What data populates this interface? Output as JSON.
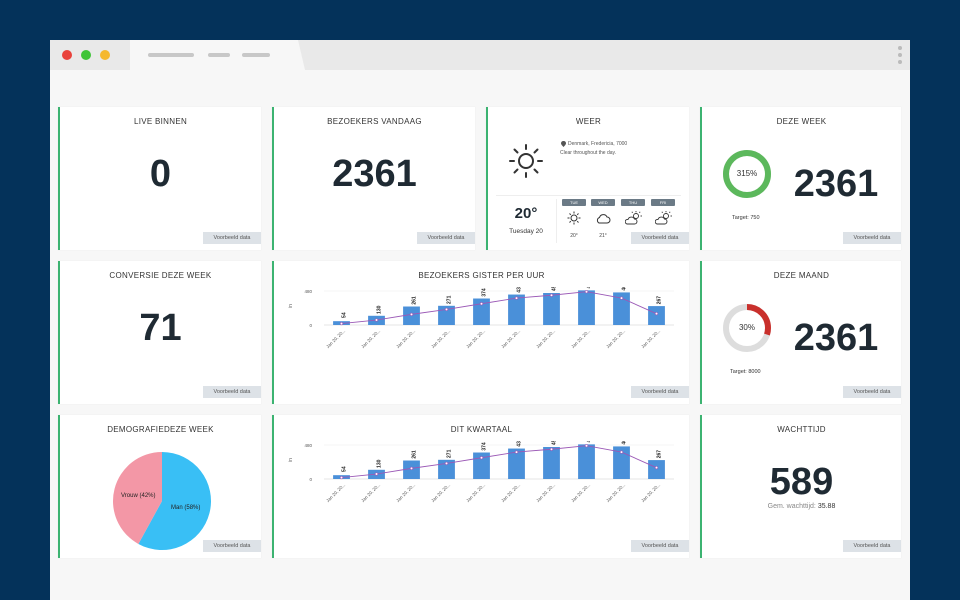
{
  "titlebar": {
    "traffic_lights": [
      "#e9423b",
      "#3fc437",
      "#f5b82e"
    ]
  },
  "cards": {
    "live": {
      "title": "LIVE BINNEN",
      "value": "0"
    },
    "visitors_today": {
      "title": "BEZOEKERS VANDAAG",
      "value": "2361"
    },
    "weather": {
      "title": "WEER",
      "location": "Denmark, Fredericia, 7000",
      "description": "Clear throughout the day.",
      "temp": "20°",
      "day": "Tuesday 20",
      "forecast": [
        {
          "day": "TUE",
          "temp": "20°",
          "icon": "sun-icon"
        },
        {
          "day": "WED",
          "temp": "21°",
          "icon": "cloud-icon"
        },
        {
          "day": "THU",
          "temp": "",
          "icon": "partly-cloudy-icon"
        },
        {
          "day": "FRI",
          "temp": "",
          "icon": "partly-cloudy-icon"
        }
      ]
    },
    "this_week": {
      "title": "DEZE WEEK",
      "value": "2361",
      "percent_label": "315%",
      "target": "Target: 750",
      "progress": 1.0,
      "color": "#5cb85c"
    },
    "conversion": {
      "title": "CONVERSIE DEZE WEEK",
      "value": "71"
    },
    "hourly": {
      "title": "BEZOEKERS GISTER PER UUR"
    },
    "this_month": {
      "title": "DEZE MAAND",
      "value": "2361",
      "percent_label": "30%",
      "target": "Target: 8000",
      "progress": 0.3,
      "color": "#c9302c"
    },
    "demographics": {
      "title": "DEMOGRAFIEDEZE WEEK"
    },
    "quarter": {
      "title": "DIT KWARTAAL"
    },
    "wait": {
      "title": "WACHTTIJD",
      "value": "589",
      "sub_label": "Gem. wachttijd:",
      "sub_value": "35.88"
    }
  },
  "badge_label": "Voorbeeld data",
  "chart_data": [
    {
      "type": "bar",
      "title": "BEZOEKERS GISTER PER UUR",
      "ylabel": "in",
      "categories": [
        "Jan 20, 20...",
        "Jan 20, 20...",
        "Jan 20, 20...",
        "Jan 20, 20...",
        "Jan 20, 20...",
        "Jan 20, 20...",
        "Jan 20, 20...",
        "Jan 20, 20...",
        "Jan 20, 20...",
        "Jan 20, 20..."
      ],
      "values": [
        54,
        130,
        261,
        271,
        374,
        430,
        452,
        489,
        460,
        267
      ],
      "line_values": [
        20,
        70,
        150,
        220,
        300,
        380,
        420,
        470,
        380,
        160
      ],
      "ylim": [
        0,
        480
      ],
      "yticks": [
        0,
        480
      ],
      "colors": {
        "bar": "#4a90d9",
        "line": "#9b59b6"
      }
    },
    {
      "type": "bar",
      "title": "DIT KWARTAAL",
      "ylabel": "in",
      "categories": [
        "Jan 20, 20...",
        "Jan 20, 20...",
        "Jan 20, 20...",
        "Jan 20, 20...",
        "Jan 20, 20...",
        "Jan 20, 20...",
        "Jan 20, 20...",
        "Jan 20, 20...",
        "Jan 20, 20...",
        "Jan 20, 20..."
      ],
      "values": [
        54,
        130,
        261,
        271,
        374,
        430,
        452,
        489,
        460,
        267
      ],
      "line_values": [
        20,
        70,
        150,
        220,
        300,
        380,
        420,
        470,
        380,
        160
      ],
      "ylim": [
        0,
        480
      ],
      "yticks": [
        0,
        480
      ],
      "colors": {
        "bar": "#4a90d9",
        "line": "#9b59b6"
      }
    },
    {
      "type": "pie",
      "labels": [
        "Man (58%)",
        "Vrouw (42%)"
      ],
      "values": [
        58,
        42
      ],
      "colors": [
        "#39bff5",
        "#f397a6"
      ]
    }
  ]
}
